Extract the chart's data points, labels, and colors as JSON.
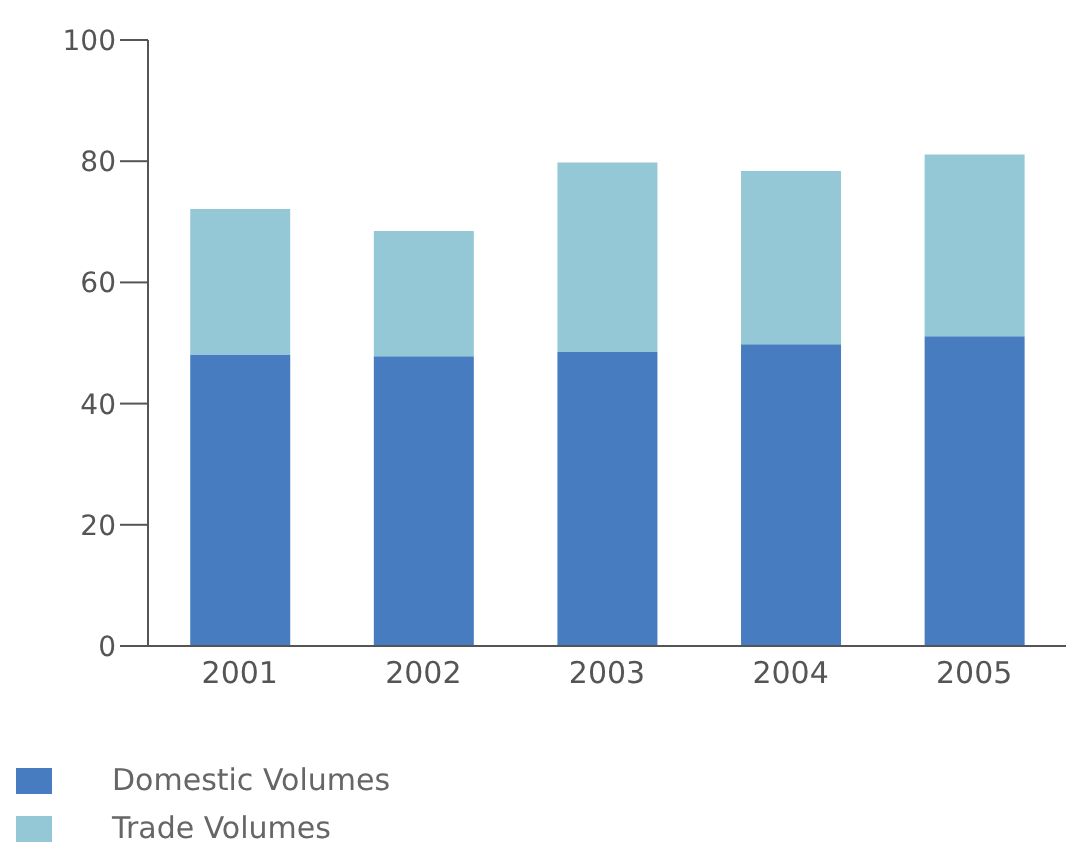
{
  "chart_data": {
    "type": "bar",
    "stacked": true,
    "categories": [
      "2001",
      "2002",
      "2003",
      "2004",
      "2005"
    ],
    "series": [
      {
        "name": "Domestic Volumes",
        "color": "#477dc0",
        "values": [
          48.1,
          47.8,
          48.5,
          49.8,
          51.1
        ]
      },
      {
        "name": "Trade Volumes",
        "color": "#95c8d6",
        "values": [
          24.0,
          20.7,
          31.3,
          28.6,
          30.0
        ]
      }
    ],
    "ylim": [
      0,
      100
    ],
    "yticks": [
      0,
      20,
      40,
      60,
      80,
      100
    ],
    "grid": false,
    "legend": "bottom left"
  }
}
